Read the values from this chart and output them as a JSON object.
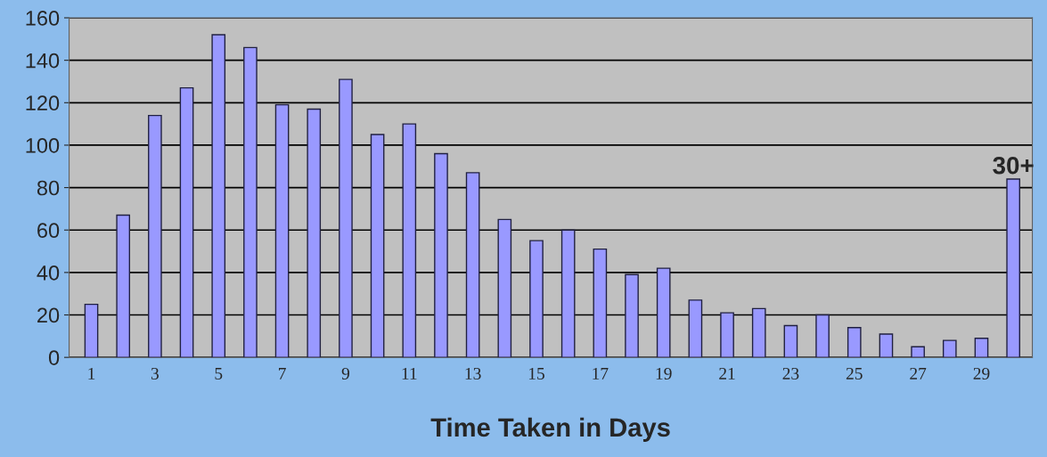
{
  "chart_data": {
    "type": "bar",
    "xlabel": "Time Taken in Days",
    "categories": [
      "1",
      null,
      "3",
      null,
      "5",
      null,
      "7",
      null,
      "9",
      null,
      "11",
      null,
      "13",
      null,
      "15",
      null,
      "17",
      null,
      "19",
      null,
      "21",
      null,
      "23",
      null,
      "25",
      null,
      "27",
      null,
      "29",
      null
    ],
    "values": [
      25,
      67,
      114,
      127,
      152,
      146,
      119,
      117,
      131,
      105,
      110,
      96,
      87,
      65,
      55,
      60,
      51,
      39,
      42,
      27,
      21,
      23,
      15,
      20,
      14,
      11,
      5,
      8,
      9,
      84
    ],
    "color": "#9999ff",
    "ylim": [
      0,
      160
    ],
    "yticks": [
      0,
      20,
      40,
      60,
      80,
      100,
      120,
      140,
      160
    ],
    "grid": "y",
    "annotations": [
      "30+"
    ]
  }
}
